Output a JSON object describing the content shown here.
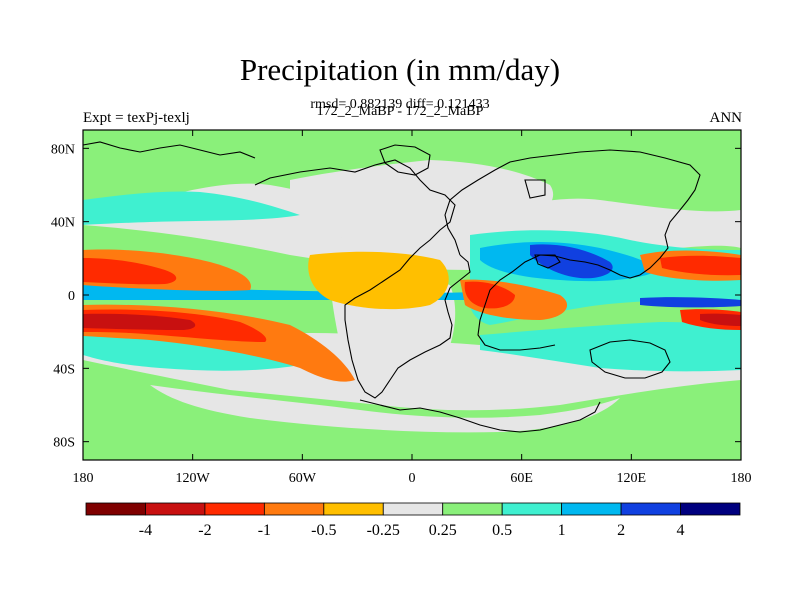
{
  "header": {
    "title": "Precipitation (in mm/day)",
    "stats": "rmsd= 0.882139 diff= 0.121433",
    "subtitle": "172_2_MaBP - 172_2_MaBP",
    "left_label": "Expt = texPj-texlj",
    "right_label": "ANN"
  },
  "axes": {
    "lon_ticks": [
      {
        "value": -180,
        "label": "180"
      },
      {
        "value": -120,
        "label": "120W"
      },
      {
        "value": -60,
        "label": "60W"
      },
      {
        "value": 0,
        "label": "0"
      },
      {
        "value": 60,
        "label": "60E"
      },
      {
        "value": 120,
        "label": "120E"
      },
      {
        "value": 180,
        "label": "180"
      }
    ],
    "lat_ticks": [
      {
        "value": 80,
        "label": "80N"
      },
      {
        "value": 40,
        "label": "40N"
      },
      {
        "value": 0,
        "label": "0"
      },
      {
        "value": -40,
        "label": "40S"
      },
      {
        "value": -80,
        "label": "80S"
      }
    ]
  },
  "colorbar": {
    "colors": [
      "#7f0000",
      "#c81010",
      "#ff2a00",
      "#ff7a10",
      "#ffbf00",
      "#e6e6e6",
      "#8af07a",
      "#3ff0d0",
      "#00b8f0",
      "#1040e0",
      "#00007f"
    ],
    "labels": [
      "-4",
      "-2",
      "-1",
      "-0.5",
      "-0.25",
      "0.25",
      "0.5",
      "1",
      "2",
      "4"
    ]
  }
}
